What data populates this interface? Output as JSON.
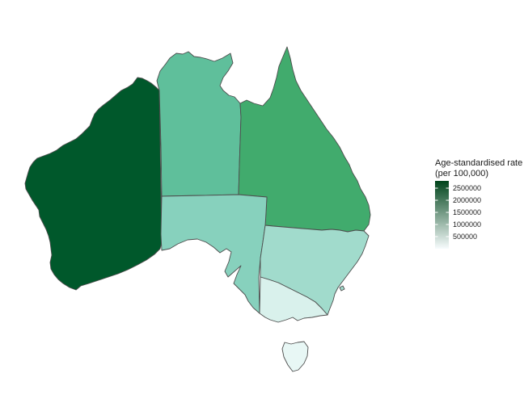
{
  "legend": {
    "title_line1": "Age-standardised rate",
    "title_line2": "(per 100,000)",
    "min": 0,
    "max": 2800000,
    "ticks": [
      {
        "value": 500000,
        "label": "500000"
      },
      {
        "value": 1000000,
        "label": "1000000"
      },
      {
        "value": 1500000,
        "label": "1500000"
      },
      {
        "value": 2000000,
        "label": "2000000"
      },
      {
        "value": 2500000,
        "label": "2500000"
      }
    ],
    "color_low": "#f7fcfd",
    "color_high": "#00441b"
  },
  "regions": [
    {
      "id": "wa",
      "fill": "#00582b"
    },
    {
      "id": "nt",
      "fill": "#5fbf9b"
    },
    {
      "id": "qld",
      "fill": "#41ab6d"
    },
    {
      "id": "sa",
      "fill": "#87d1bd"
    },
    {
      "id": "nsw",
      "fill": "#a1dbcc"
    },
    {
      "id": "vic",
      "fill": "#d9f1ec"
    },
    {
      "id": "tas",
      "fill": "#e8f7f5"
    },
    {
      "id": "act",
      "fill": "#a1dbcc"
    }
  ]
}
